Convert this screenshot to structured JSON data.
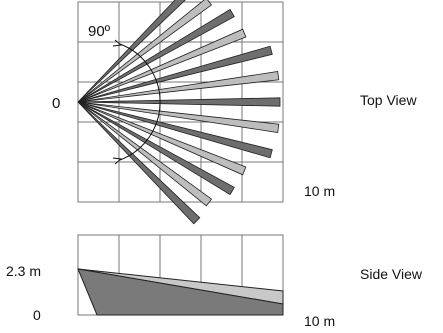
{
  "top_view": {
    "angle_label": "90º",
    "origin_label": "0",
    "range_label": "10 m",
    "view_label": "Top View",
    "zone_count": 13,
    "fan_angle_deg": 90
  },
  "side_view": {
    "height_label": "2.3 m",
    "origin_label": "0",
    "range_label": "10 m",
    "view_label": "Side View"
  },
  "colors": {
    "grid": "#777777",
    "beam_dark": "#6e6e6e",
    "beam_light": "#bdbdbd",
    "beam_outline": "#222222",
    "side_light": "#c8c8c8",
    "side_dark": "#7a7a7a"
  }
}
